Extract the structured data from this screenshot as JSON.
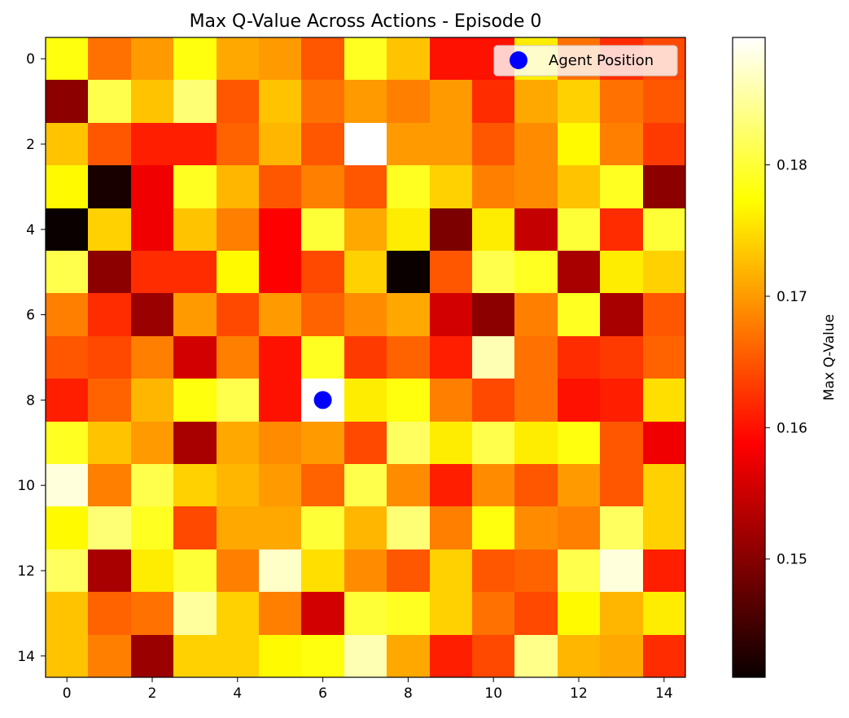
{
  "chart_data": {
    "type": "heatmap",
    "title": "Max Q-Value Across Actions - Episode 0",
    "colormap": "hot",
    "x_ticks": [
      0,
      2,
      4,
      6,
      8,
      10,
      12,
      14
    ],
    "y_ticks": [
      0,
      2,
      4,
      6,
      8,
      10,
      12,
      14
    ],
    "xlim": [
      -0.5,
      14.5
    ],
    "ylim": [
      14.5,
      -0.5
    ],
    "colorbar": {
      "label": "Max Q-Value",
      "range": [
        0.141,
        0.1897
      ],
      "ticks": [
        0.15,
        0.16,
        0.17,
        0.18
      ],
      "tick_labels": [
        "0.15",
        "0.16",
        "0.17",
        "0.18"
      ]
    },
    "legend": {
      "label": "Agent Position",
      "placement": "upper right",
      "color": "#0000ff"
    },
    "agent": {
      "x": 6,
      "y": 8,
      "color": "#0000ff"
    },
    "grid": false,
    "values": [
      [
        0.178,
        0.167,
        0.17,
        0.178,
        0.171,
        0.17,
        0.165,
        0.179,
        0.173,
        0.16,
        0.16,
        0.176,
        0.167,
        0.162,
        0.164
      ],
      [
        0.15,
        0.181,
        0.173,
        0.183,
        0.165,
        0.173,
        0.167,
        0.17,
        0.168,
        0.17,
        0.162,
        0.171,
        0.174,
        0.167,
        0.165
      ],
      [
        0.173,
        0.165,
        0.161,
        0.161,
        0.166,
        0.172,
        0.165,
        0.19,
        0.17,
        0.17,
        0.165,
        0.169,
        0.177,
        0.168,
        0.163
      ],
      [
        0.177,
        0.142,
        0.157,
        0.179,
        0.172,
        0.165,
        0.168,
        0.165,
        0.179,
        0.174,
        0.168,
        0.169,
        0.173,
        0.179,
        0.15
      ],
      [
        0.141,
        0.174,
        0.157,
        0.173,
        0.168,
        0.158,
        0.18,
        0.171,
        0.176,
        0.149,
        0.176,
        0.154,
        0.18,
        0.162,
        0.18
      ],
      [
        0.181,
        0.15,
        0.162,
        0.162,
        0.177,
        0.158,
        0.164,
        0.174,
        0.141,
        0.165,
        0.181,
        0.179,
        0.152,
        0.176,
        0.174
      ],
      [
        0.168,
        0.162,
        0.151,
        0.17,
        0.164,
        0.17,
        0.166,
        0.169,
        0.171,
        0.155,
        0.15,
        0.168,
        0.179,
        0.152,
        0.165
      ],
      [
        0.165,
        0.164,
        0.168,
        0.155,
        0.168,
        0.16,
        0.179,
        0.163,
        0.166,
        0.161,
        0.186,
        0.167,
        0.162,
        0.163,
        0.166
      ],
      [
        0.161,
        0.166,
        0.172,
        0.178,
        0.181,
        0.16,
        0.19,
        0.176,
        0.178,
        0.168,
        0.164,
        0.167,
        0.16,
        0.161,
        0.175
      ],
      [
        0.179,
        0.173,
        0.17,
        0.152,
        0.171,
        0.169,
        0.17,
        0.164,
        0.182,
        0.176,
        0.181,
        0.176,
        0.178,
        0.165,
        0.157
      ],
      [
        0.188,
        0.168,
        0.181,
        0.174,
        0.172,
        0.17,
        0.166,
        0.181,
        0.169,
        0.161,
        0.169,
        0.165,
        0.17,
        0.165,
        0.174
      ],
      [
        0.177,
        0.183,
        0.179,
        0.164,
        0.171,
        0.171,
        0.18,
        0.172,
        0.183,
        0.168,
        0.178,
        0.169,
        0.168,
        0.182,
        0.174
      ],
      [
        0.182,
        0.152,
        0.176,
        0.18,
        0.168,
        0.187,
        0.175,
        0.169,
        0.165,
        0.174,
        0.165,
        0.166,
        0.181,
        0.188,
        0.161
      ],
      [
        0.173,
        0.166,
        0.167,
        0.185,
        0.174,
        0.168,
        0.155,
        0.18,
        0.179,
        0.174,
        0.167,
        0.164,
        0.177,
        0.172,
        0.176
      ],
      [
        0.173,
        0.168,
        0.151,
        0.174,
        0.174,
        0.177,
        0.178,
        0.186,
        0.171,
        0.161,
        0.164,
        0.184,
        0.172,
        0.171,
        0.162
      ]
    ]
  }
}
